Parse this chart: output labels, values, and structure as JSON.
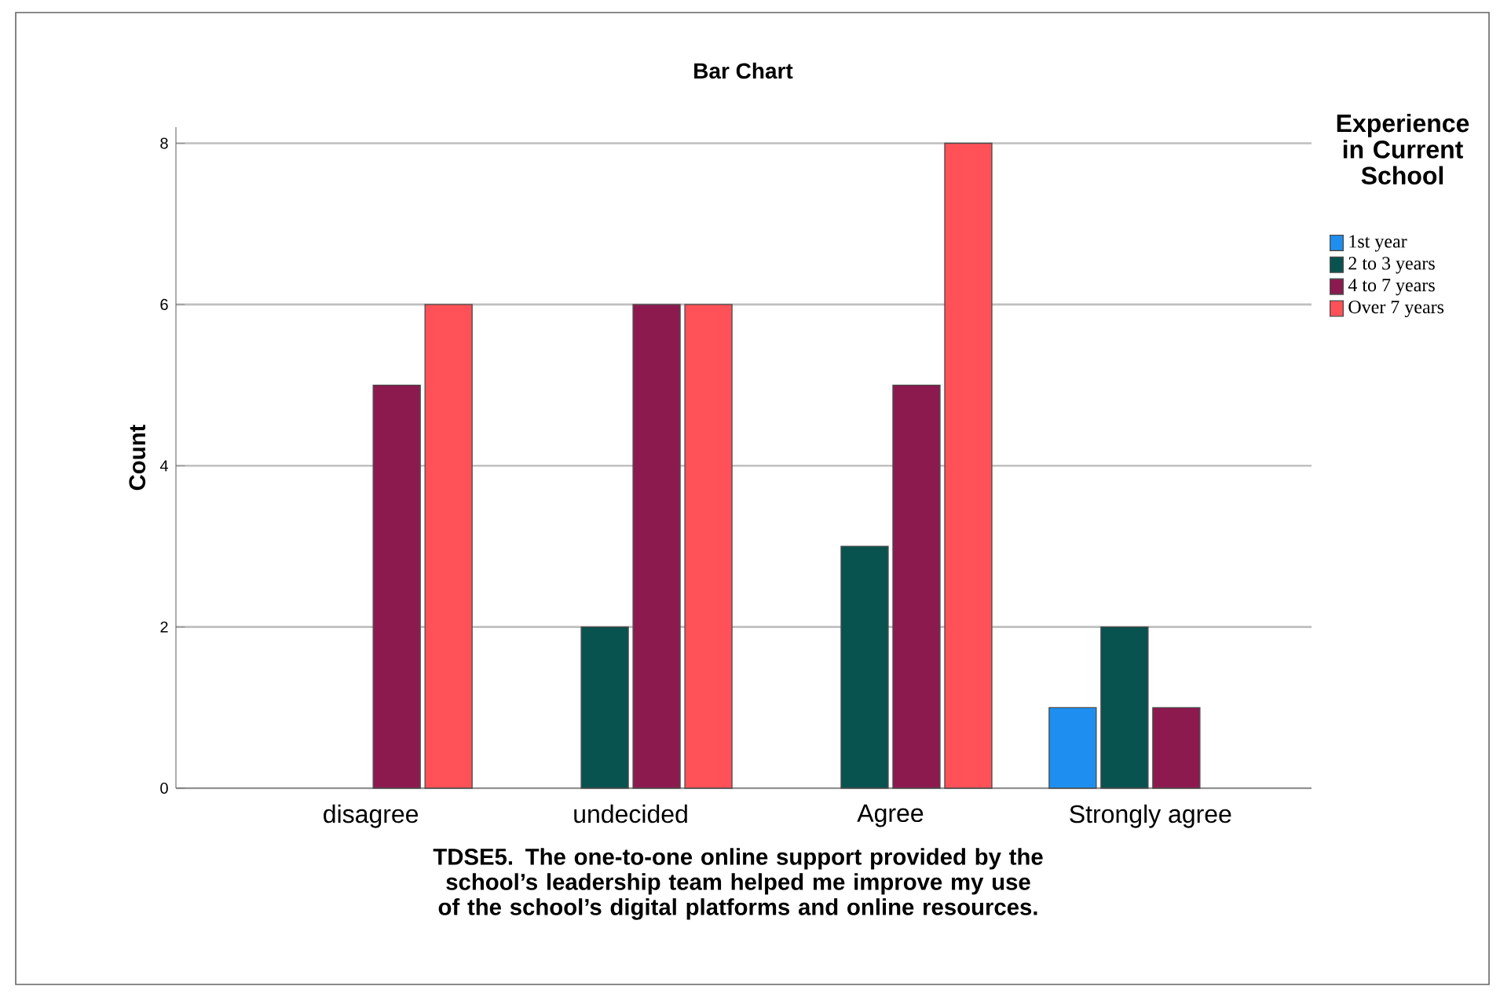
{
  "chart_data": {
    "type": "bar",
    "title": "Bar Chart",
    "xlabel": "TDSE5. The one-to-one online support provided by the school’s leadership team helped me improve my use of the school’s digital platforms and online resources.",
    "ylabel": "Count",
    "legend_title": "Experience in Current School",
    "categories": [
      "disagree",
      "undecided",
      "Agree",
      "Strongly agree"
    ],
    "series": [
      {
        "name": "1st year",
        "color": "#1e8ff0",
        "values": [
          null,
          null,
          null,
          1
        ]
      },
      {
        "name": "2 to 3 years",
        "color": "#08524f",
        "values": [
          null,
          2,
          3,
          2
        ]
      },
      {
        "name": "4 to 7 years",
        "color": "#8c1a4e",
        "values": [
          5,
          6,
          5,
          1
        ]
      },
      {
        "name": "Over 7 years",
        "color": "#ff5157",
        "values": [
          6,
          6,
          8,
          null
        ]
      }
    ],
    "ylim": [
      0,
      8.2
    ],
    "yticks": [
      0,
      2,
      4,
      6,
      8
    ],
    "grid": "y",
    "legend": "top right"
  }
}
